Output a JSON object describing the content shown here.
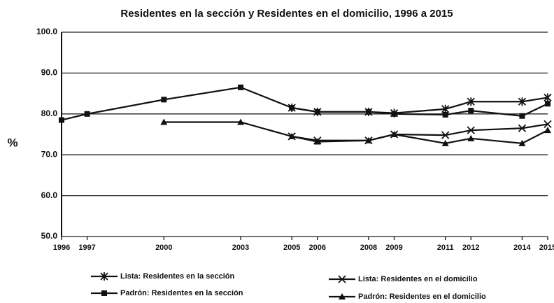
{
  "chart_data": {
    "type": "line",
    "title": "Residentes en la sección y Residentes en el domicilio, 1996 a 2015",
    "y_label": "%",
    "x": [
      1996,
      1997,
      2000,
      2003,
      2005,
      2006,
      2008,
      2009,
      2011,
      2012,
      2014,
      2015
    ],
    "xlim": [
      1996,
      2015
    ],
    "xticks": [
      1996,
      1997,
      2000,
      2003,
      2005,
      2006,
      2008,
      2009,
      2011,
      2012,
      2014,
      2015
    ],
    "ylim": [
      50,
      100
    ],
    "yticks": [
      {
        "value": 50,
        "label": "50.0"
      },
      {
        "value": 60,
        "label": "60.0"
      },
      {
        "value": 70,
        "label": "70.0"
      },
      {
        "value": 80,
        "label": "80.0"
      },
      {
        "value": 90,
        "label": "90.0"
      },
      {
        "value": 100,
        "label": "100.0"
      }
    ],
    "grid": true,
    "legend": "bottom",
    "series": [
      {
        "name": "Lista: Residentes en la sección",
        "color": "#111111",
        "marker": "star",
        "values": [
          null,
          null,
          null,
          null,
          81.5,
          80.5,
          80.5,
          80.2,
          81.2,
          83,
          83,
          84
        ]
      },
      {
        "name": "Lista: Residentes en el domicilio",
        "color": "#111111",
        "marker": "x",
        "values": [
          null,
          null,
          null,
          null,
          74.5,
          73.5,
          73.5,
          75,
          74.8,
          76,
          76.5,
          77.5
        ]
      },
      {
        "name": "Padrón: Residentes en la sección",
        "color": "#111111",
        "marker": "square",
        "values": [
          78.5,
          80,
          83.5,
          86.5,
          81.5,
          80.5,
          80.5,
          80,
          79.8,
          80.8,
          79.5,
          82.5
        ]
      },
      {
        "name": "Padrón: Residentes en el domicilio",
        "color": "#111111",
        "marker": "triangle",
        "values": [
          null,
          null,
          78,
          78,
          74.5,
          73.2,
          73.5,
          75,
          72.8,
          74,
          72.8,
          76
        ]
      }
    ]
  }
}
